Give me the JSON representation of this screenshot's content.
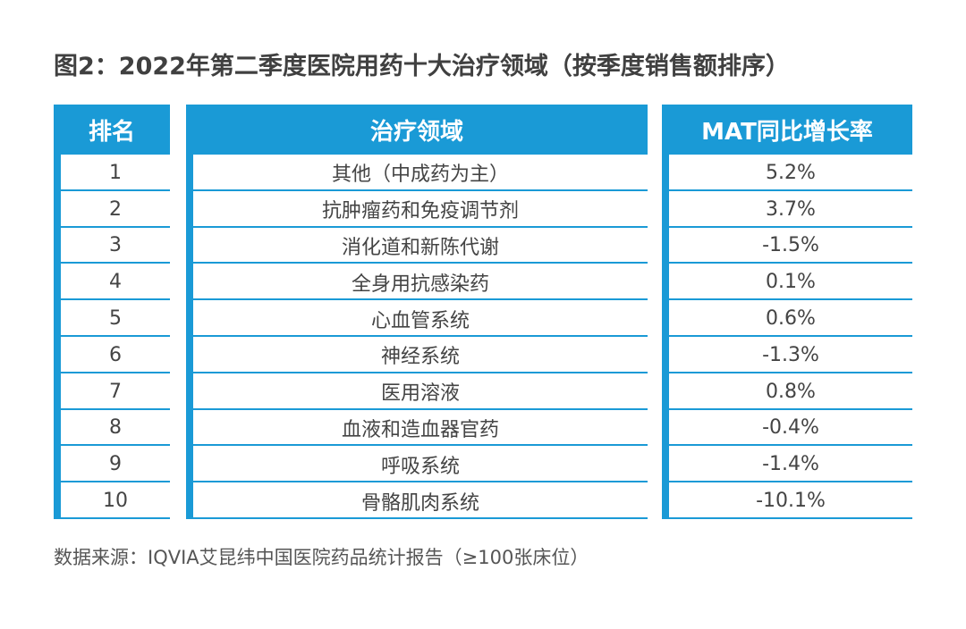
{
  "header": {
    "title": "图2：2022年第二季度医院用药十大治疗领域（按季度销售额排序）"
  },
  "table": {
    "columns": [
      "排名",
      "治疗领域",
      "MAT同比增长率"
    ],
    "rows": [
      [
        "1",
        "其他（中成药为主）",
        "5.2%"
      ],
      [
        "2",
        "抗肿瘤药和免疫调节剂",
        "3.7%"
      ],
      [
        "3",
        "消化道和新陈代谢",
        "-1.5%"
      ],
      [
        "4",
        "全身用抗感染药",
        "0.1%"
      ],
      [
        "5",
        "心血管系统",
        "0.6%"
      ],
      [
        "6",
        "神经系统",
        "-1.3%"
      ],
      [
        "7",
        "医用溶液",
        "0.8%"
      ],
      [
        "8",
        "血液和造血器官药",
        "-0.4%"
      ],
      [
        "9",
        "呼吸系统",
        "-1.4%"
      ],
      [
        "10",
        "骨骼肌肉系统",
        "-10.1%"
      ]
    ]
  },
  "footer": {
    "source": "数据来源：IQVIA艾昆纬中国医院药品统计报告（≥100张床位）"
  }
}
